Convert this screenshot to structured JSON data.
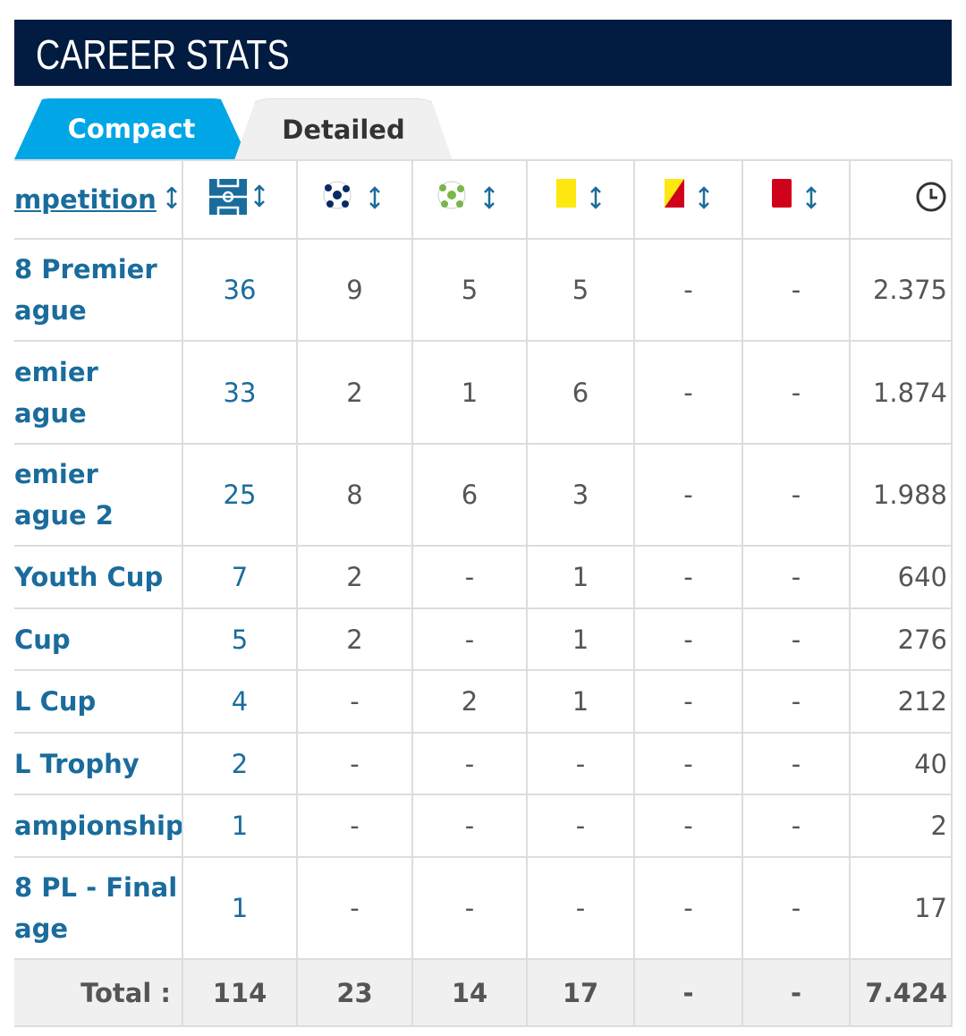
{
  "header": {
    "title": "CAREER STATS"
  },
  "tabs": [
    "Compact",
    "Detailed"
  ],
  "table": {
    "competition_header": "mpetition",
    "rows": [
      {
        "competition": [
          "8 Premier",
          "ague"
        ],
        "cells": [
          "36",
          "9",
          "5",
          "5",
          "-",
          "-",
          "2.375"
        ]
      },
      {
        "competition": [
          "emier",
          "ague"
        ],
        "cells": [
          "33",
          "2",
          "1",
          "6",
          "-",
          "-",
          "1.874"
        ]
      },
      {
        "competition": [
          "emier",
          "ague 2"
        ],
        "cells": [
          "25",
          "8",
          "6",
          "3",
          "-",
          "-",
          "1.988"
        ]
      },
      {
        "competition": [
          "Youth Cup"
        ],
        "cells": [
          "7",
          "2",
          "-",
          "1",
          "-",
          "-",
          "640"
        ]
      },
      {
        "competition": [
          "Cup"
        ],
        "cells": [
          "5",
          "2",
          "-",
          "1",
          "-",
          "-",
          "276"
        ]
      },
      {
        "competition": [
          "L Cup"
        ],
        "cells": [
          "4",
          "-",
          "2",
          "1",
          "-",
          "-",
          "212"
        ]
      },
      {
        "competition": [
          "L Trophy"
        ],
        "cells": [
          "2",
          "-",
          "-",
          "-",
          "-",
          "-",
          "40"
        ]
      },
      {
        "competition": [
          "ampionship"
        ],
        "cells": [
          "1",
          "-",
          "-",
          "-",
          "-",
          "-",
          "2"
        ]
      },
      {
        "competition": [
          "8 PL - Final",
          "age"
        ],
        "cells": [
          "1",
          "-",
          "-",
          "-",
          "-",
          "-",
          "17"
        ]
      }
    ],
    "total": {
      "label": "Total :",
      "cells": [
        "114",
        "23",
        "14",
        "17",
        "-",
        "-",
        "7.424"
      ]
    }
  }
}
